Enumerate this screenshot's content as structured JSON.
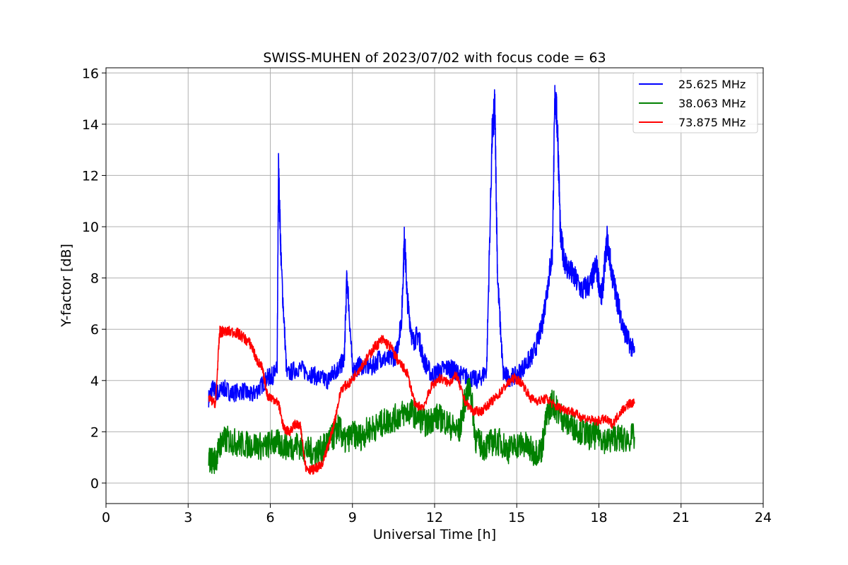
{
  "chart_data": {
    "type": "line",
    "title": "SWISS-MUHEN of 2023/07/02 with focus code = 63",
    "xlabel": "Universal Time [h]",
    "ylabel": "Y-factor [dB]",
    "xlim": [
      0,
      24
    ],
    "ylim": [
      -0.8,
      16.2
    ],
    "xticks": [
      0,
      3,
      6,
      9,
      12,
      15,
      18,
      21,
      24
    ],
    "yticks": [
      0,
      2,
      4,
      6,
      8,
      10,
      12,
      14,
      16
    ],
    "xtick_labels": [
      "0",
      "3",
      "6",
      "9",
      "12",
      "15",
      "18",
      "21",
      "24"
    ],
    "ytick_labels": [
      "0",
      "2",
      "4",
      "6",
      "8",
      "10",
      "12",
      "14",
      "16"
    ],
    "grid": true,
    "legend_position": "top-right",
    "series": [
      {
        "name": "25.625 MHz",
        "color": "#0000ff",
        "x": [
          3.75,
          3.9,
          4.1,
          4.3,
          4.6,
          5.0,
          5.3,
          5.6,
          5.9,
          6.1,
          6.25,
          6.3,
          6.4,
          6.6,
          7.0,
          7.4,
          7.8,
          8.1,
          8.3,
          8.5,
          8.7,
          8.8,
          9.0,
          9.3,
          9.7,
          10.0,
          10.3,
          10.6,
          10.8,
          10.9,
          11.0,
          11.2,
          11.4,
          11.6,
          11.9,
          12.2,
          12.5,
          12.7,
          13.0,
          13.3,
          13.6,
          13.9,
          14.1,
          14.2,
          14.3,
          14.5,
          14.7,
          15.0,
          15.3,
          15.6,
          15.9,
          16.1,
          16.3,
          16.4,
          16.5,
          16.6,
          16.8,
          17.1,
          17.4,
          17.7,
          17.9,
          18.1,
          18.3,
          18.5,
          18.7,
          18.9,
          19.1,
          19.3
        ],
        "y": [
          3.3,
          3.7,
          3.5,
          3.7,
          3.5,
          3.6,
          3.4,
          3.7,
          4.1,
          4.2,
          4.4,
          12.3,
          8.5,
          4.2,
          4.5,
          4.3,
          4.1,
          4.0,
          4.3,
          4.5,
          4.8,
          8.2,
          4.4,
          4.6,
          4.5,
          4.9,
          4.8,
          5.0,
          6.5,
          9.7,
          7.2,
          5.5,
          5.8,
          4.8,
          4.2,
          4.4,
          4.5,
          4.4,
          4.2,
          4.1,
          4.0,
          4.4,
          13.5,
          14.7,
          8.0,
          4.3,
          4.1,
          4.2,
          4.6,
          5.0,
          6.0,
          7.5,
          9.0,
          15.4,
          13.5,
          9.5,
          8.5,
          8.0,
          7.5,
          7.8,
          8.5,
          7.2,
          9.5,
          8.0,
          7.0,
          6.0,
          5.5,
          5.1
        ]
      },
      {
        "name": "38.063 MHz",
        "color": "#008000",
        "x": [
          3.75,
          4.0,
          4.2,
          4.4,
          4.7,
          5.0,
          5.4,
          5.8,
          6.1,
          6.4,
          6.7,
          7.0,
          7.3,
          7.6,
          7.9,
          8.1,
          8.3,
          8.5,
          8.7,
          9.0,
          9.3,
          9.6,
          9.9,
          10.2,
          10.5,
          10.8,
          11.1,
          11.4,
          11.7,
          12.0,
          12.3,
          12.6,
          12.9,
          13.1,
          13.3,
          13.5,
          13.8,
          14.1,
          14.4,
          14.7,
          15.0,
          15.3,
          15.6,
          15.9,
          16.1,
          16.3,
          16.5,
          16.8,
          17.1,
          17.4,
          17.7,
          18.0,
          18.3,
          18.6,
          18.9,
          19.3
        ],
        "y": [
          0.9,
          0.9,
          1.6,
          1.7,
          1.6,
          1.5,
          1.5,
          1.4,
          1.6,
          1.5,
          1.4,
          1.5,
          1.3,
          1.2,
          1.3,
          1.6,
          1.8,
          2.2,
          1.6,
          1.9,
          1.8,
          2.1,
          2.2,
          2.4,
          2.5,
          2.7,
          2.8,
          2.6,
          2.3,
          2.6,
          2.5,
          2.2,
          2.0,
          3.2,
          3.8,
          1.7,
          1.4,
          1.6,
          1.6,
          1.3,
          1.5,
          1.5,
          1.2,
          1.3,
          2.6,
          3.2,
          2.8,
          2.4,
          2.2,
          2.0,
          1.8,
          1.9,
          1.6,
          1.8,
          1.7,
          1.8
        ]
      },
      {
        "name": "73.875 MHz",
        "color": "#ff0000",
        "x": [
          3.75,
          4.0,
          4.15,
          4.3,
          4.7,
          5.0,
          5.3,
          5.5,
          5.7,
          5.9,
          6.1,
          6.3,
          6.5,
          6.7,
          6.9,
          7.1,
          7.3,
          7.5,
          7.7,
          7.9,
          8.1,
          8.3,
          8.6,
          8.9,
          9.2,
          9.5,
          9.8,
          10.1,
          10.4,
          10.7,
          11.0,
          11.3,
          11.6,
          11.9,
          12.2,
          12.5,
          12.8,
          13.1,
          13.4,
          13.7,
          14.0,
          14.3,
          14.6,
          14.9,
          15.2,
          15.5,
          15.8,
          16.1,
          16.4,
          16.7,
          17.0,
          17.3,
          17.6,
          17.9,
          18.2,
          18.5,
          18.8,
          19.1,
          19.3
        ],
        "y": [
          3.3,
          3.1,
          5.9,
          5.9,
          5.9,
          5.7,
          5.4,
          4.8,
          4.5,
          3.4,
          3.3,
          3.1,
          2.1,
          2.0,
          2.3,
          2.2,
          0.6,
          0.5,
          0.6,
          0.7,
          1.4,
          2.2,
          3.7,
          3.9,
          4.4,
          4.8,
          5.3,
          5.6,
          5.3,
          4.7,
          4.3,
          3.0,
          3.0,
          3.8,
          4.1,
          3.9,
          4.2,
          3.2,
          2.8,
          2.8,
          3.1,
          3.4,
          3.8,
          4.1,
          3.9,
          3.3,
          3.2,
          3.3,
          3.0,
          2.9,
          2.8,
          2.6,
          2.5,
          2.4,
          2.5,
          2.3,
          2.8,
          3.1,
          3.1
        ]
      }
    ]
  }
}
